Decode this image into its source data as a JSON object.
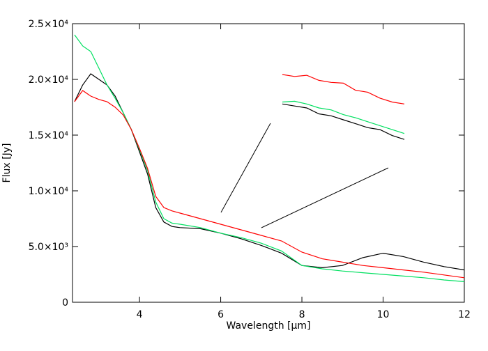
{
  "chart_data": [
    {
      "type": "line",
      "x_label": "Wavelength [μm]",
      "y_label": "Flux [Jy]",
      "xlim": [
        2.35,
        12
      ],
      "ylim": [
        0,
        25000
      ],
      "xticks": [
        4,
        6,
        8,
        10,
        12
      ],
      "yticks": [
        0,
        {
          "value": 5000,
          "label": "5.0×10³"
        },
        {
          "value": 10000,
          "label": "1.0×10⁴"
        },
        {
          "value": 15000,
          "label": "1.5×10⁴"
        },
        {
          "value": 20000,
          "label": "2.0×10⁴"
        },
        {
          "value": 25000,
          "label": "2.5×10⁴"
        }
      ],
      "x": [
        2.4,
        2.6,
        2.8,
        3.0,
        3.2,
        3.4,
        3.6,
        3.8,
        4.0,
        4.2,
        4.4,
        4.6,
        4.8,
        5.0,
        5.5,
        6.0,
        6.5,
        7.0,
        7.5,
        8.0,
        8.5,
        9.0,
        9.5,
        10.0,
        10.5,
        11.0,
        11.5,
        12.0
      ],
      "series": [
        {
          "color": "#000000",
          "values": [
            18000,
            19500,
            20500,
            20000,
            19500,
            18500,
            17000,
            15500,
            13500,
            11500,
            8500,
            7200,
            6800,
            6700,
            6600,
            6200,
            5700,
            5100,
            4400,
            3300,
            3100,
            3300,
            4000,
            4400,
            4100,
            3600,
            3200,
            2900
          ]
        },
        {
          "color": "#00e060",
          "values": [
            24000,
            23000,
            22500,
            21000,
            19500,
            18300,
            17000,
            15500,
            13700,
            11800,
            9000,
            7500,
            7100,
            7000,
            6700,
            6200,
            5800,
            5300,
            4600,
            3300,
            3000,
            2800,
            2650,
            2500,
            2350,
            2200,
            2000,
            1850
          ]
        },
        {
          "color": "#ff0000",
          "values": [
            18000,
            19000,
            18500,
            18200,
            18000,
            17500,
            16800,
            15500,
            13800,
            12000,
            9500,
            8500,
            8200,
            8000,
            7500,
            7000,
            6500,
            6000,
            5500,
            4500,
            3900,
            3600,
            3300,
            3100,
            2900,
            2700,
            2450,
            2200
          ]
        }
      ]
    },
    {
      "type": "line",
      "xlim": [
        6,
        7
      ],
      "ylim": [
        5000,
        7300
      ],
      "x": [
        6.0,
        6.1,
        6.2,
        6.3,
        6.4,
        6.5,
        6.6,
        6.7,
        6.8,
        6.9,
        7.0
      ],
      "series": [
        {
          "color": "#ff0000",
          "values": [
            7000,
            6950,
            6980,
            6850,
            6800,
            6780,
            6600,
            6550,
            6400,
            6300,
            6250
          ]
        },
        {
          "color": "#00e060",
          "values": [
            6300,
            6320,
            6250,
            6150,
            6100,
            5980,
            5900,
            5800,
            5700,
            5600,
            5500
          ]
        },
        {
          "color": "#000000",
          "values": [
            6250,
            6200,
            6150,
            6000,
            5950,
            5850,
            5750,
            5650,
            5600,
            5450,
            5350
          ]
        }
      ]
    }
  ]
}
